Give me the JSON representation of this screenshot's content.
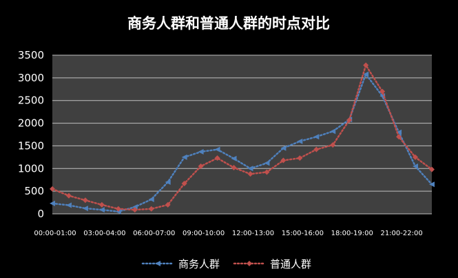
{
  "chart_data": {
    "type": "line",
    "title": "商务人群和普通人群的时点对比",
    "xlabel": "",
    "ylabel": "",
    "ylim": [
      0,
      3500
    ],
    "yticks": [
      0,
      500,
      1000,
      1500,
      2000,
      2500,
      3000,
      3500
    ],
    "x": [
      0,
      1,
      2,
      3,
      4,
      5,
      6,
      7,
      8,
      9,
      10,
      11,
      12,
      13,
      14,
      15,
      16,
      17,
      18,
      19,
      20,
      21,
      22,
      23
    ],
    "x_tick_labels": [
      {
        "x": 0,
        "label": "00:00-01:00"
      },
      {
        "x": 3,
        "label": "03:00-04:00"
      },
      {
        "x": 6,
        "label": "06:00-07:00"
      },
      {
        "x": 9,
        "label": "09:00-10:00"
      },
      {
        "x": 12,
        "label": "12:00-13:00"
      },
      {
        "x": 15,
        "label": "15:00-16:00"
      },
      {
        "x": 18,
        "label": "18:00-19:00"
      },
      {
        "x": 21,
        "label": "21:00-22:00"
      }
    ],
    "grid": true,
    "legend_position": "bottom",
    "background_color": "#000000",
    "plot_area_color": "#404040",
    "series": [
      {
        "name": "商务人群",
        "color": "#4f81bd",
        "marker": "triangle",
        "values": [
          230,
          190,
          120,
          90,
          50,
          150,
          320,
          700,
          1250,
          1370,
          1420,
          1220,
          1000,
          1120,
          1450,
          1600,
          1700,
          1820,
          2080,
          3080,
          2600,
          1800,
          1050,
          650
        ]
      },
      {
        "name": "普通人群",
        "color": "#c0504d",
        "marker": "diamond",
        "values": [
          550,
          400,
          300,
          200,
          110,
          90,
          110,
          200,
          670,
          1050,
          1230,
          1020,
          880,
          920,
          1180,
          1230,
          1420,
          1520,
          2070,
          3280,
          2700,
          1700,
          1250,
          980
        ]
      }
    ]
  }
}
